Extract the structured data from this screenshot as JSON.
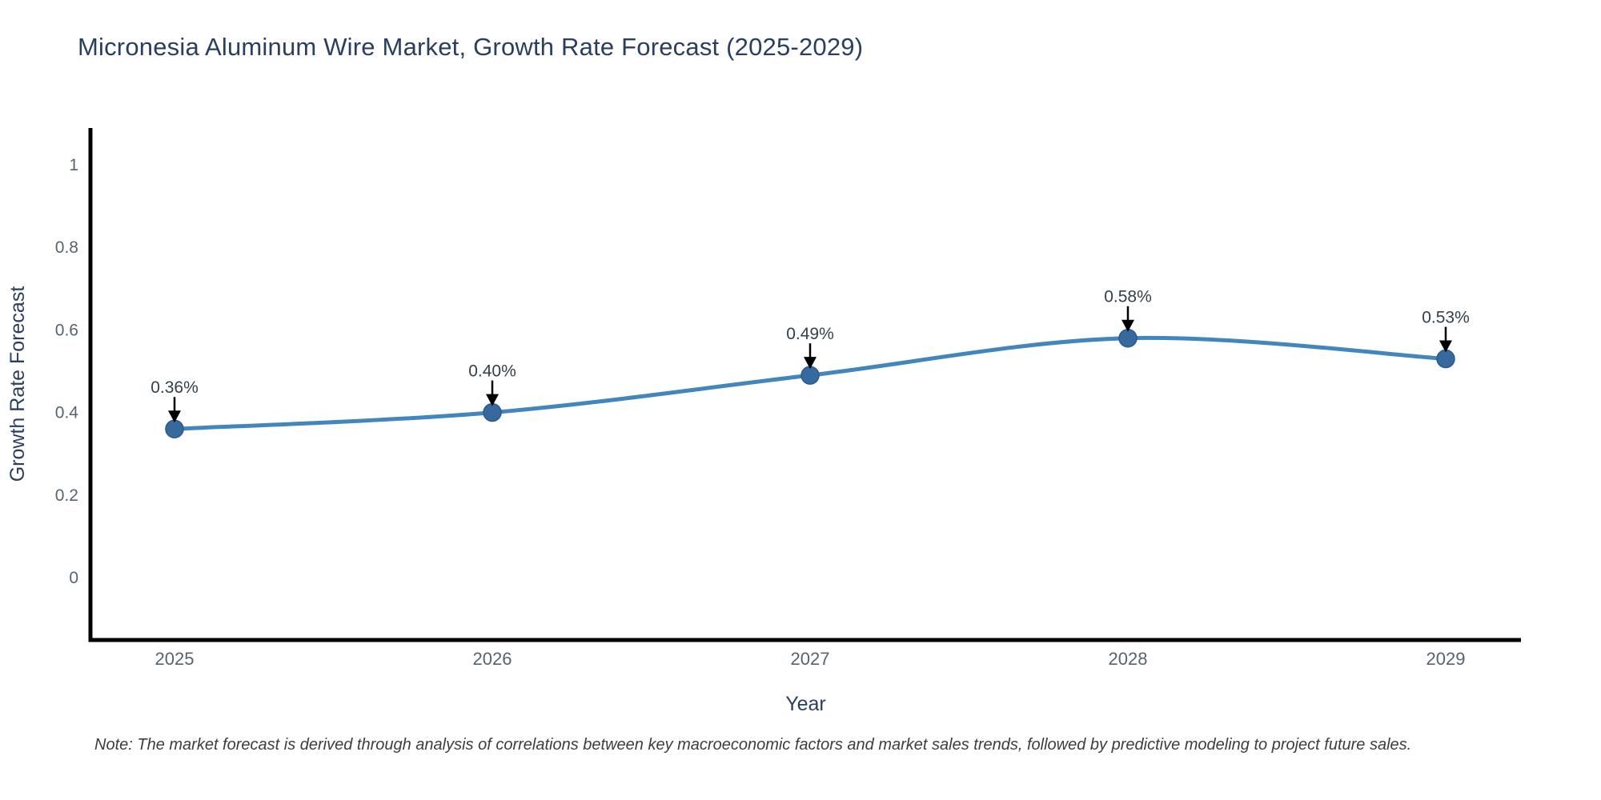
{
  "chart_data": {
    "type": "line",
    "title": "Micronesia Aluminum Wire Market, Growth Rate Forecast (2025-2029)",
    "xlabel": "Year",
    "ylabel": "Growth Rate Forecast",
    "x": [
      "2025",
      "2026",
      "2027",
      "2028",
      "2029"
    ],
    "values": [
      0.36,
      0.4,
      0.49,
      0.58,
      0.53
    ],
    "point_labels": [
      "0.36%",
      "0.40%",
      "0.49%",
      "0.58%",
      "0.53%"
    ],
    "y_ticks": [
      0,
      0.2,
      0.4,
      0.6,
      0.8,
      1
    ],
    "y_tick_labels": [
      "0",
      "0.2",
      "0.4",
      "0.6",
      "0.8",
      "1"
    ],
    "ylim": [
      -0.15,
      1.09
    ],
    "grid": false,
    "legend_position": "none",
    "line_shape": "spline",
    "marker": "circle",
    "annotation_arrows": true,
    "note": "Note: The market forecast is derived through analysis of correlations between key macroeconomic factors and market sales trends, followed by predictive modeling to project future sales.",
    "colors": {
      "line": "#4286bd",
      "marker": "#36699e",
      "marker_edge": "#2d5a8a",
      "axis": "#000000",
      "tick_label": "#57636f",
      "axis_title": "#2a3f5f",
      "title": "#2a3f5f",
      "annotation_text": "#333f4b",
      "annotation_arrow": "#000000",
      "note": "#3d3d3d"
    }
  }
}
